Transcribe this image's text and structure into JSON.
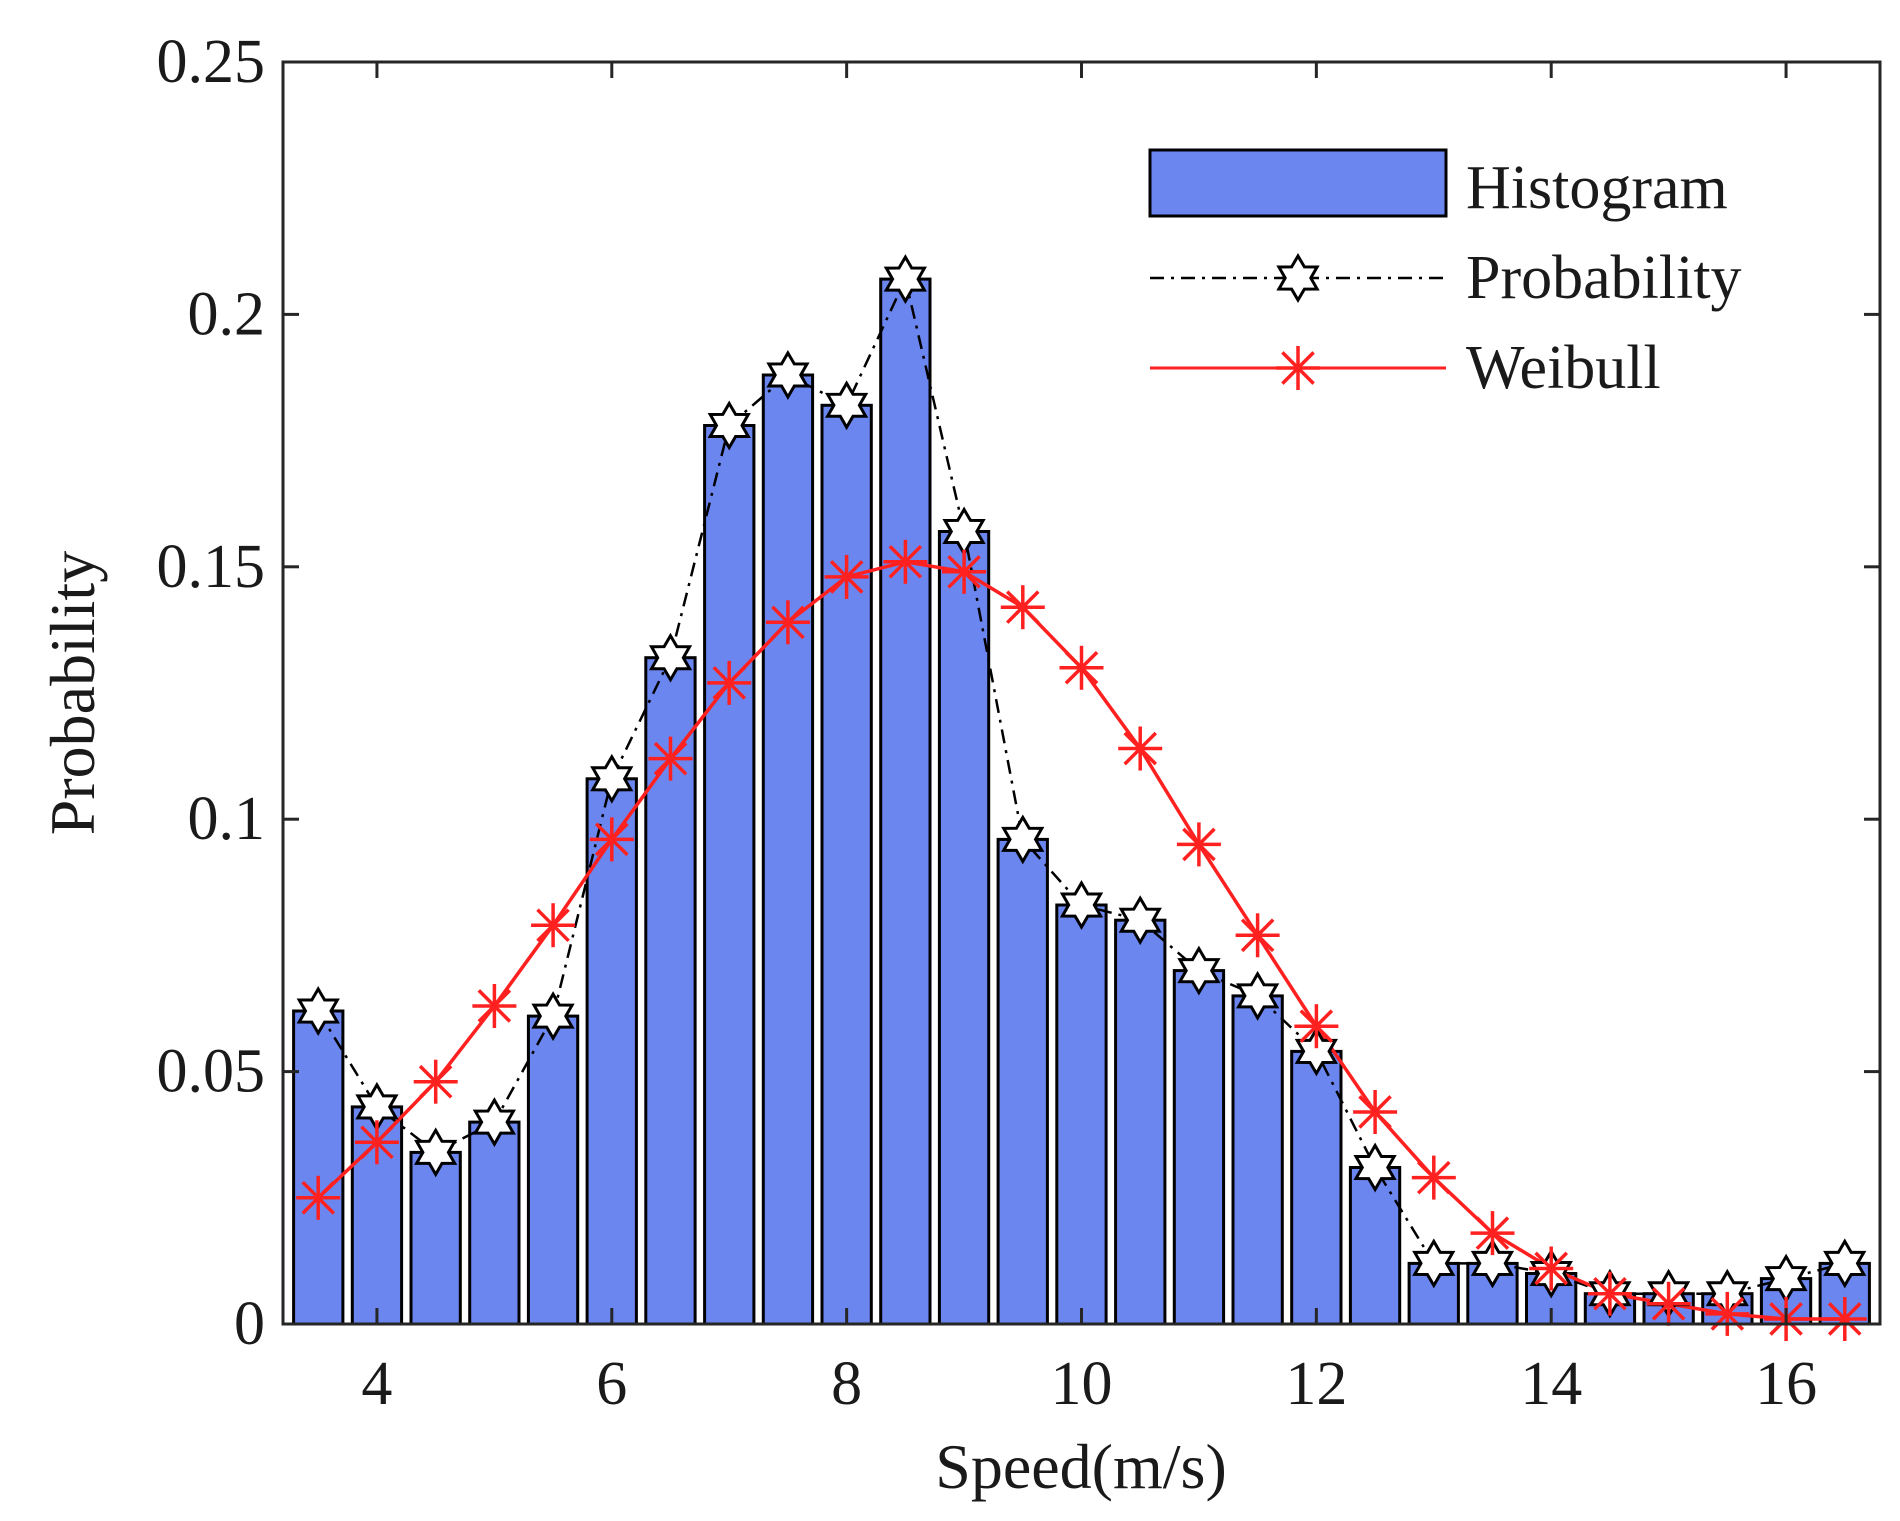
{
  "chart_data": {
    "type": "bar",
    "title": "",
    "xlabel": "Speed(m/s)",
    "ylabel": "Probability",
    "xlim": [
      3.2,
      16.8
    ],
    "ylim": [
      0,
      0.25
    ],
    "xticks": [
      4,
      6,
      8,
      10,
      12,
      14,
      16
    ],
    "xtick_labels": [
      "4",
      "6",
      "8",
      "10",
      "12",
      "14",
      "16"
    ],
    "yticks": [
      0,
      0.05,
      0.1,
      0.15,
      0.2,
      0.25
    ],
    "ytick_labels": [
      "0",
      "0.05",
      "0.1",
      "0.15",
      "0.2",
      "0.25"
    ],
    "bar_width": 0.42,
    "x": [
      3.5,
      4.0,
      4.5,
      5.0,
      5.5,
      6.0,
      6.5,
      7.0,
      7.5,
      8.0,
      8.5,
      9.0,
      9.5,
      10.0,
      10.5,
      11.0,
      11.5,
      12.0,
      12.5,
      13.0,
      13.5,
      14.0,
      14.5,
      15.0,
      15.5,
      16.0,
      16.5
    ],
    "series": [
      {
        "name": "Histogram",
        "type": "bar",
        "color": "#6b86ef",
        "values": [
          0.062,
          0.043,
          0.034,
          0.04,
          0.061,
          0.108,
          0.132,
          0.178,
          0.188,
          0.182,
          0.207,
          0.157,
          0.096,
          0.083,
          0.08,
          0.07,
          0.065,
          0.054,
          0.031,
          0.012,
          0.012,
          0.01,
          0.006,
          0.006,
          0.006,
          0.009,
          0.012
        ]
      },
      {
        "name": "Probability",
        "type": "line",
        "style": "dash-dot",
        "marker": "hexagram",
        "color": "#000000",
        "values": [
          0.062,
          0.043,
          0.034,
          0.04,
          0.061,
          0.108,
          0.132,
          0.178,
          0.188,
          0.182,
          0.207,
          0.157,
          0.096,
          0.083,
          0.08,
          0.07,
          0.065,
          0.054,
          0.031,
          0.012,
          0.012,
          0.01,
          0.006,
          0.006,
          0.006,
          0.009,
          0.012
        ]
      },
      {
        "name": "Weibull",
        "type": "line",
        "style": "solid",
        "marker": "asterisk",
        "color": "#ff2020",
        "values": [
          0.025,
          0.036,
          0.048,
          0.063,
          0.079,
          0.096,
          0.112,
          0.127,
          0.139,
          0.148,
          0.151,
          0.149,
          0.142,
          0.13,
          0.114,
          0.095,
          0.077,
          0.059,
          0.042,
          0.029,
          0.018,
          0.011,
          0.006,
          0.004,
          0.002,
          0.001,
          0.001
        ]
      }
    ],
    "legend": {
      "position": "top-right",
      "entries": [
        "Histogram",
        "Probability",
        "Weibull"
      ]
    },
    "grid": false
  }
}
